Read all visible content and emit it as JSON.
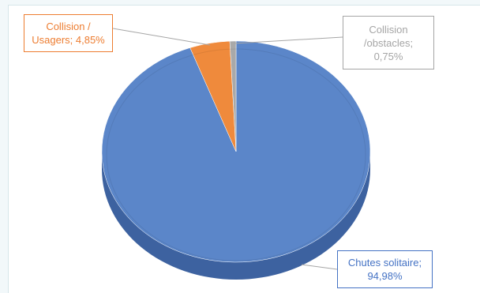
{
  "chart_data": {
    "type": "pie",
    "style": "3d",
    "title": "",
    "slices": [
      {
        "label": "Chutes solitaire",
        "value": 94.98,
        "display": "94,98%",
        "color": "#5b86c9",
        "side_color": "#3d62a0"
      },
      {
        "label": "Collision / Usagers",
        "value": 4.85,
        "display": "4,85%",
        "color": "#ef8a3c",
        "side_color": "#b8621f"
      },
      {
        "label": "Collision /obstacles",
        "value": 0.75,
        "display": "0,75%",
        "color": "#a9a9a9",
        "side_color": "#7d7d7d"
      }
    ],
    "labels": {
      "usagers": {
        "lines": [
          "Collision /",
          "Usagers; 4,85%"
        ],
        "color": "#ed7d31"
      },
      "obstacles": {
        "lines": [
          "Collision",
          "/obstacles;",
          "0,75%"
        ],
        "color": "#a5a5a5"
      },
      "chutes": {
        "lines": [
          "Chutes solitaire;",
          "94,98%"
        ],
        "color": "#4472c4"
      }
    }
  }
}
